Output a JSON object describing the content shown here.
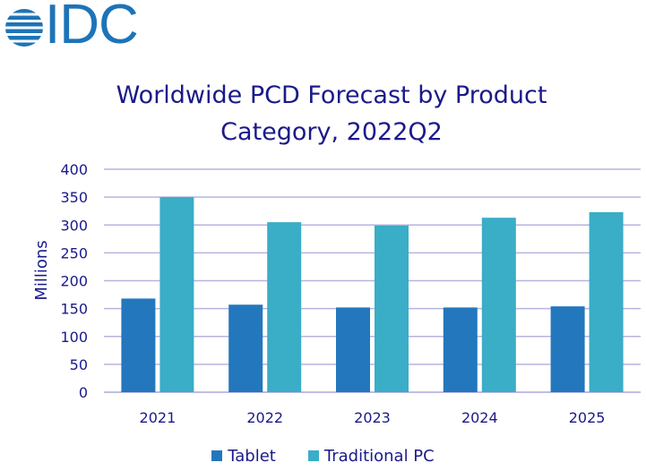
{
  "logo": {
    "text": "IDC",
    "color": "#1d74b8"
  },
  "chart_data": {
    "type": "bar",
    "title": "Worldwide PCD Forecast by Product Category, 2022Q2",
    "title_lines": [
      "Worldwide PCD Forecast by Product",
      "Category, 2022Q2"
    ],
    "xlabel": "",
    "ylabel": "Millions",
    "ylim": [
      0,
      400
    ],
    "yticks": [
      "0",
      "50",
      "100",
      "150",
      "200",
      "250",
      "300",
      "350",
      "400"
    ],
    "grid": true,
    "legend_position": "bottom",
    "categories": [
      "2021",
      "2022",
      "2023",
      "2024",
      "2025"
    ],
    "series": [
      {
        "name": "Tablet",
        "color": "#2377bd",
        "values": [
          168,
          157,
          152,
          152,
          154
        ]
      },
      {
        "name": "Traditional PC",
        "color": "#3aadc7",
        "values": [
          350,
          305,
          299,
          313,
          323
        ]
      }
    ]
  }
}
